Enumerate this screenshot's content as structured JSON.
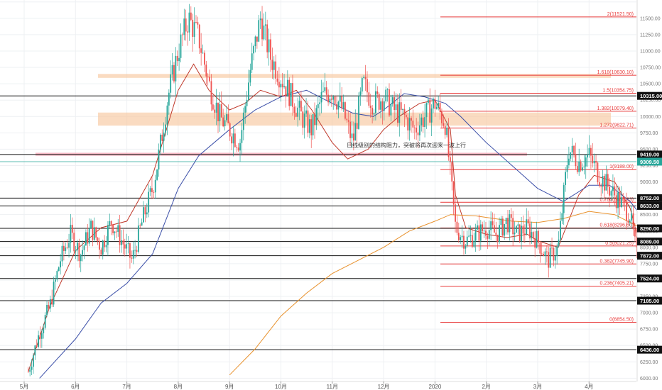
{
  "chart_data": {
    "type": "candlestick",
    "ylim": [
      5950,
      11780
    ],
    "grid": true,
    "x_ticks": [
      "5月",
      "6月",
      "7月",
      "8月",
      "9月",
      "10月",
      "11月",
      "12月",
      "2020",
      "2月",
      "3月",
      "4月"
    ],
    "y_ticks": [
      6000,
      6250,
      6500,
      6750,
      7000,
      7250,
      7500,
      7750,
      8000,
      8250,
      8500,
      8750,
      9000,
      9250,
      9500,
      9750,
      10000,
      10250,
      10500,
      10750,
      11000,
      11250,
      11500,
      11750
    ],
    "y_ticks_display": [
      "6000.00",
      "6250.00",
      "6500.00",
      "6750.00",
      "7000.00",
      "7250.00",
      "7500.00",
      "7750.00",
      "8000.00",
      "8250.00",
      "8500.00",
      "8750.00",
      "9000.00",
      "9250.00",
      "9500.00",
      "9750.00",
      "10000.00",
      "10250.00",
      "10500.00",
      "10750.00",
      "11000.00",
      "11250.00",
      "11500.00",
      "11750.00"
    ],
    "price_level_tags": [
      {
        "value": 10315,
        "label": "10315.00",
        "style": "black"
      },
      {
        "value": 9419,
        "label": "9419.00",
        "style": "black"
      },
      {
        "value": 9309.5,
        "label": "9309.50",
        "style": "teal"
      },
      {
        "value": 8752,
        "label": "8752.00",
        "style": "black"
      },
      {
        "value": 8633,
        "label": "8633.00",
        "style": "black"
      },
      {
        "value": 8290,
        "label": "8290.00",
        "style": "black"
      },
      {
        "value": 8089,
        "label": "8089.00",
        "style": "black"
      },
      {
        "value": 7872,
        "label": "7872.00",
        "style": "black"
      },
      {
        "value": 7524,
        "label": "7524.00",
        "style": "black"
      },
      {
        "value": 7185,
        "label": "7185.00",
        "style": "black"
      },
      {
        "value": 6436,
        "label": "6436.00",
        "style": "black"
      }
    ],
    "fibonacci_levels": [
      {
        "ratio": "2",
        "value": 11521.5,
        "label": "2(11521.50)"
      },
      {
        "ratio": "1.618",
        "value": 10630.1,
        "label": "1.618(10630.10)"
      },
      {
        "ratio": "1.5",
        "value": 10354.75,
        "label": "1.5(10354.75)"
      },
      {
        "ratio": "1.382",
        "value": 10079.4,
        "label": "1.382(10079.40)"
      },
      {
        "ratio": "1.272",
        "value": 9822.71,
        "label": "1.272(9822.71)"
      },
      {
        "ratio": "1",
        "value": 9188,
        "label": "1(9188.00)"
      },
      {
        "ratio": "0.786",
        "value": 8688.63,
        "label": "0.786(8688.63)"
      },
      {
        "ratio": "0.618",
        "value": 8296.6,
        "label": "0.618(8296.60)"
      },
      {
        "ratio": "0.5",
        "value": 8021.25,
        "label": "0.5(8021.25)"
      },
      {
        "ratio": "0.382",
        "value": 7745.9,
        "label": "0.382(7745.90)"
      },
      {
        "ratio": "0.236",
        "value": 7405.21,
        "label": "0.236(7405.21)"
      },
      {
        "ratio": "0",
        "value": 6854.5,
        "label": "0(6854.50)"
      }
    ],
    "resistance_zones": [
      {
        "low": 10590,
        "high": 10650,
        "color": "#f7c8a0"
      },
      {
        "low": 9860,
        "high": 10060,
        "color": "#f7c8a0"
      },
      {
        "low": 9400,
        "high": 9445,
        "color": "#f2a0b0"
      }
    ],
    "annotation": "日线级别的结构阻力，突破将再次迎来一波上行",
    "series": [
      {
        "kind": "ma_fast",
        "color": "#c0392b",
        "points": [
          [
            0.08,
            6100
          ],
          [
            0.5,
            7100
          ],
          [
            1.0,
            7950
          ],
          [
            1.5,
            8300
          ],
          [
            2.0,
            8400
          ],
          [
            2.5,
            9100
          ],
          [
            3.0,
            10400
          ],
          [
            3.3,
            10800
          ],
          [
            3.6,
            10400
          ],
          [
            4.0,
            10100
          ],
          [
            4.3,
            10200
          ],
          [
            4.6,
            10400
          ],
          [
            5.0,
            10300
          ],
          [
            5.3,
            10400
          ],
          [
            5.6,
            10100
          ],
          [
            6.0,
            9600
          ],
          [
            6.3,
            9350
          ],
          [
            6.7,
            9500
          ],
          [
            7.0,
            9800
          ],
          [
            7.3,
            10000
          ],
          [
            7.7,
            10200
          ],
          [
            8.0,
            10250
          ],
          [
            8.3,
            9800
          ],
          [
            8.4,
            8800
          ],
          [
            8.6,
            8300
          ],
          [
            9.0,
            8200
          ],
          [
            9.4,
            8150
          ],
          [
            9.8,
            8200
          ],
          [
            10.0,
            8100
          ],
          [
            10.4,
            8000
          ],
          [
            10.8,
            8800
          ],
          [
            11.1,
            9100
          ],
          [
            11.5,
            9000
          ],
          [
            11.8,
            8600
          ],
          [
            12.0,
            8000
          ],
          [
            12.3,
            7400
          ],
          [
            12.7,
            7300
          ],
          [
            13.0,
            7300
          ],
          [
            13.4,
            7150
          ],
          [
            13.8,
            7200
          ],
          [
            14.0,
            7300
          ],
          [
            14.3,
            7700
          ],
          [
            14.6,
            8400
          ],
          [
            14.9,
            8600
          ],
          [
            15.2,
            8700
          ]
        ]
      },
      {
        "kind": "ma_slow",
        "color": "#3b4fa8",
        "points": [
          [
            0.3,
            6000
          ],
          [
            1.0,
            6600
          ],
          [
            1.5,
            7150
          ],
          [
            2.0,
            7450
          ],
          [
            2.5,
            7900
          ],
          [
            3.0,
            8900
          ],
          [
            3.4,
            9400
          ],
          [
            4.0,
            9800
          ],
          [
            4.5,
            10100
          ],
          [
            5.0,
            10300
          ],
          [
            5.5,
            10400
          ],
          [
            6.0,
            10200
          ],
          [
            6.4,
            10050
          ],
          [
            6.8,
            10000
          ],
          [
            7.0,
            10100
          ],
          [
            7.4,
            10350
          ],
          [
            7.8,
            10300
          ],
          [
            8.2,
            10200
          ],
          [
            8.5,
            10000
          ],
          [
            9.0,
            9600
          ],
          [
            9.5,
            9250
          ],
          [
            10.0,
            8900
          ],
          [
            10.5,
            8700
          ],
          [
            11.0,
            8950
          ],
          [
            11.4,
            8950
          ],
          [
            11.8,
            8700
          ],
          [
            12.2,
            8300
          ],
          [
            12.6,
            8000
          ],
          [
            13.0,
            7750
          ],
          [
            13.4,
            7600
          ],
          [
            13.8,
            7500
          ],
          [
            14.2,
            7600
          ],
          [
            14.6,
            7900
          ],
          [
            15.0,
            8050
          ],
          [
            15.2,
            8100
          ]
        ]
      },
      {
        "kind": "ma_long",
        "color": "#e8912c",
        "points": [
          [
            4.0,
            6050
          ],
          [
            4.5,
            6450
          ],
          [
            5.0,
            6950
          ],
          [
            5.5,
            7300
          ],
          [
            6.0,
            7600
          ],
          [
            6.5,
            7800
          ],
          [
            7.0,
            8000
          ],
          [
            7.5,
            8250
          ],
          [
            8.0,
            8400
          ],
          [
            8.3,
            8500
          ],
          [
            8.8,
            8480
          ],
          [
            9.5,
            8400
          ],
          [
            10.0,
            8380
          ],
          [
            10.5,
            8440
          ],
          [
            11.0,
            8550
          ],
          [
            11.5,
            8500
          ],
          [
            12.0,
            8300
          ],
          [
            12.5,
            8200
          ],
          [
            13.0,
            8120
          ],
          [
            13.5,
            8060
          ],
          [
            14.0,
            8000
          ],
          [
            14.5,
            8020
          ],
          [
            15.0,
            8100
          ],
          [
            15.2,
            8130
          ]
        ]
      }
    ],
    "candles": [
      [
        0.08,
        6100
      ],
      [
        0.3,
        6700
      ],
      [
        0.5,
        7100
      ],
      [
        0.7,
        7800
      ],
      [
        0.9,
        8200
      ],
      [
        1.1,
        7900
      ],
      [
        1.3,
        8300
      ],
      [
        1.5,
        8000
      ],
      [
        1.7,
        8400
      ],
      [
        1.9,
        8100
      ],
      [
        2.1,
        7800
      ],
      [
        2.3,
        8400
      ],
      [
        2.5,
        8900
      ],
      [
        2.6,
        9300
      ],
      [
        2.8,
        10300
      ],
      [
        3.0,
        11000
      ],
      [
        3.2,
        11500
      ],
      [
        3.4,
        11200
      ],
      [
        3.6,
        10500
      ],
      [
        3.8,
        10000
      ],
      [
        4.0,
        9800
      ],
      [
        4.2,
        9600
      ],
      [
        4.4,
        10700
      ],
      [
        4.6,
        11500
      ],
      [
        4.8,
        10900
      ],
      [
        5.0,
        10600
      ],
      [
        5.2,
        10300
      ],
      [
        5.4,
        10000
      ],
      [
        5.6,
        9800
      ],
      [
        5.8,
        10300
      ],
      [
        6.0,
        10400
      ],
      [
        6.2,
        10100
      ],
      [
        6.4,
        9600
      ],
      [
        6.6,
        10500
      ],
      [
        6.8,
        10200
      ],
      [
        7.0,
        10300
      ],
      [
        7.2,
        10100
      ],
      [
        7.4,
        10000
      ],
      [
        7.6,
        9800
      ],
      [
        7.8,
        10000
      ],
      [
        8.0,
        10200
      ],
      [
        8.2,
        9900
      ],
      [
        8.4,
        8300
      ],
      [
        8.6,
        8100
      ],
      [
        8.8,
        8200
      ],
      [
        9.0,
        8300
      ],
      [
        9.2,
        8200
      ],
      [
        9.4,
        8400
      ],
      [
        9.6,
        8200
      ],
      [
        9.8,
        8300
      ],
      [
        10.0,
        8100
      ],
      [
        10.2,
        7800
      ],
      [
        10.4,
        8000
      ],
      [
        10.6,
        9500
      ],
      [
        10.8,
        9300
      ],
      [
        11.0,
        9400
      ],
      [
        11.2,
        9100
      ],
      [
        11.4,
        8900
      ],
      [
        11.6,
        8700
      ],
      [
        11.8,
        8500
      ],
      [
        12.0,
        7500
      ],
      [
        12.2,
        7200
      ],
      [
        12.4,
        7300
      ],
      [
        12.6,
        7400
      ],
      [
        12.8,
        7100
      ],
      [
        13.0,
        7300
      ],
      [
        13.2,
        7100
      ],
      [
        13.4,
        6900
      ],
      [
        13.6,
        7300
      ],
      [
        13.8,
        7200
      ],
      [
        14.0,
        7300
      ],
      [
        14.2,
        7600
      ],
      [
        14.4,
        8000
      ],
      [
        14.6,
        8400
      ],
      [
        14.8,
        8700
      ],
      [
        14.9,
        8600
      ],
      [
        15.0,
        8900
      ],
      [
        15.1,
        9300
      ],
      [
        15.2,
        9310
      ]
    ],
    "boxes": [
      {
        "x0": 14.35,
        "x1": 14.75,
        "y0": 9160,
        "y1": 9400
      },
      {
        "x0": 13.05,
        "x1": 13.45,
        "y0": 6760,
        "y1": 6990
      }
    ]
  }
}
